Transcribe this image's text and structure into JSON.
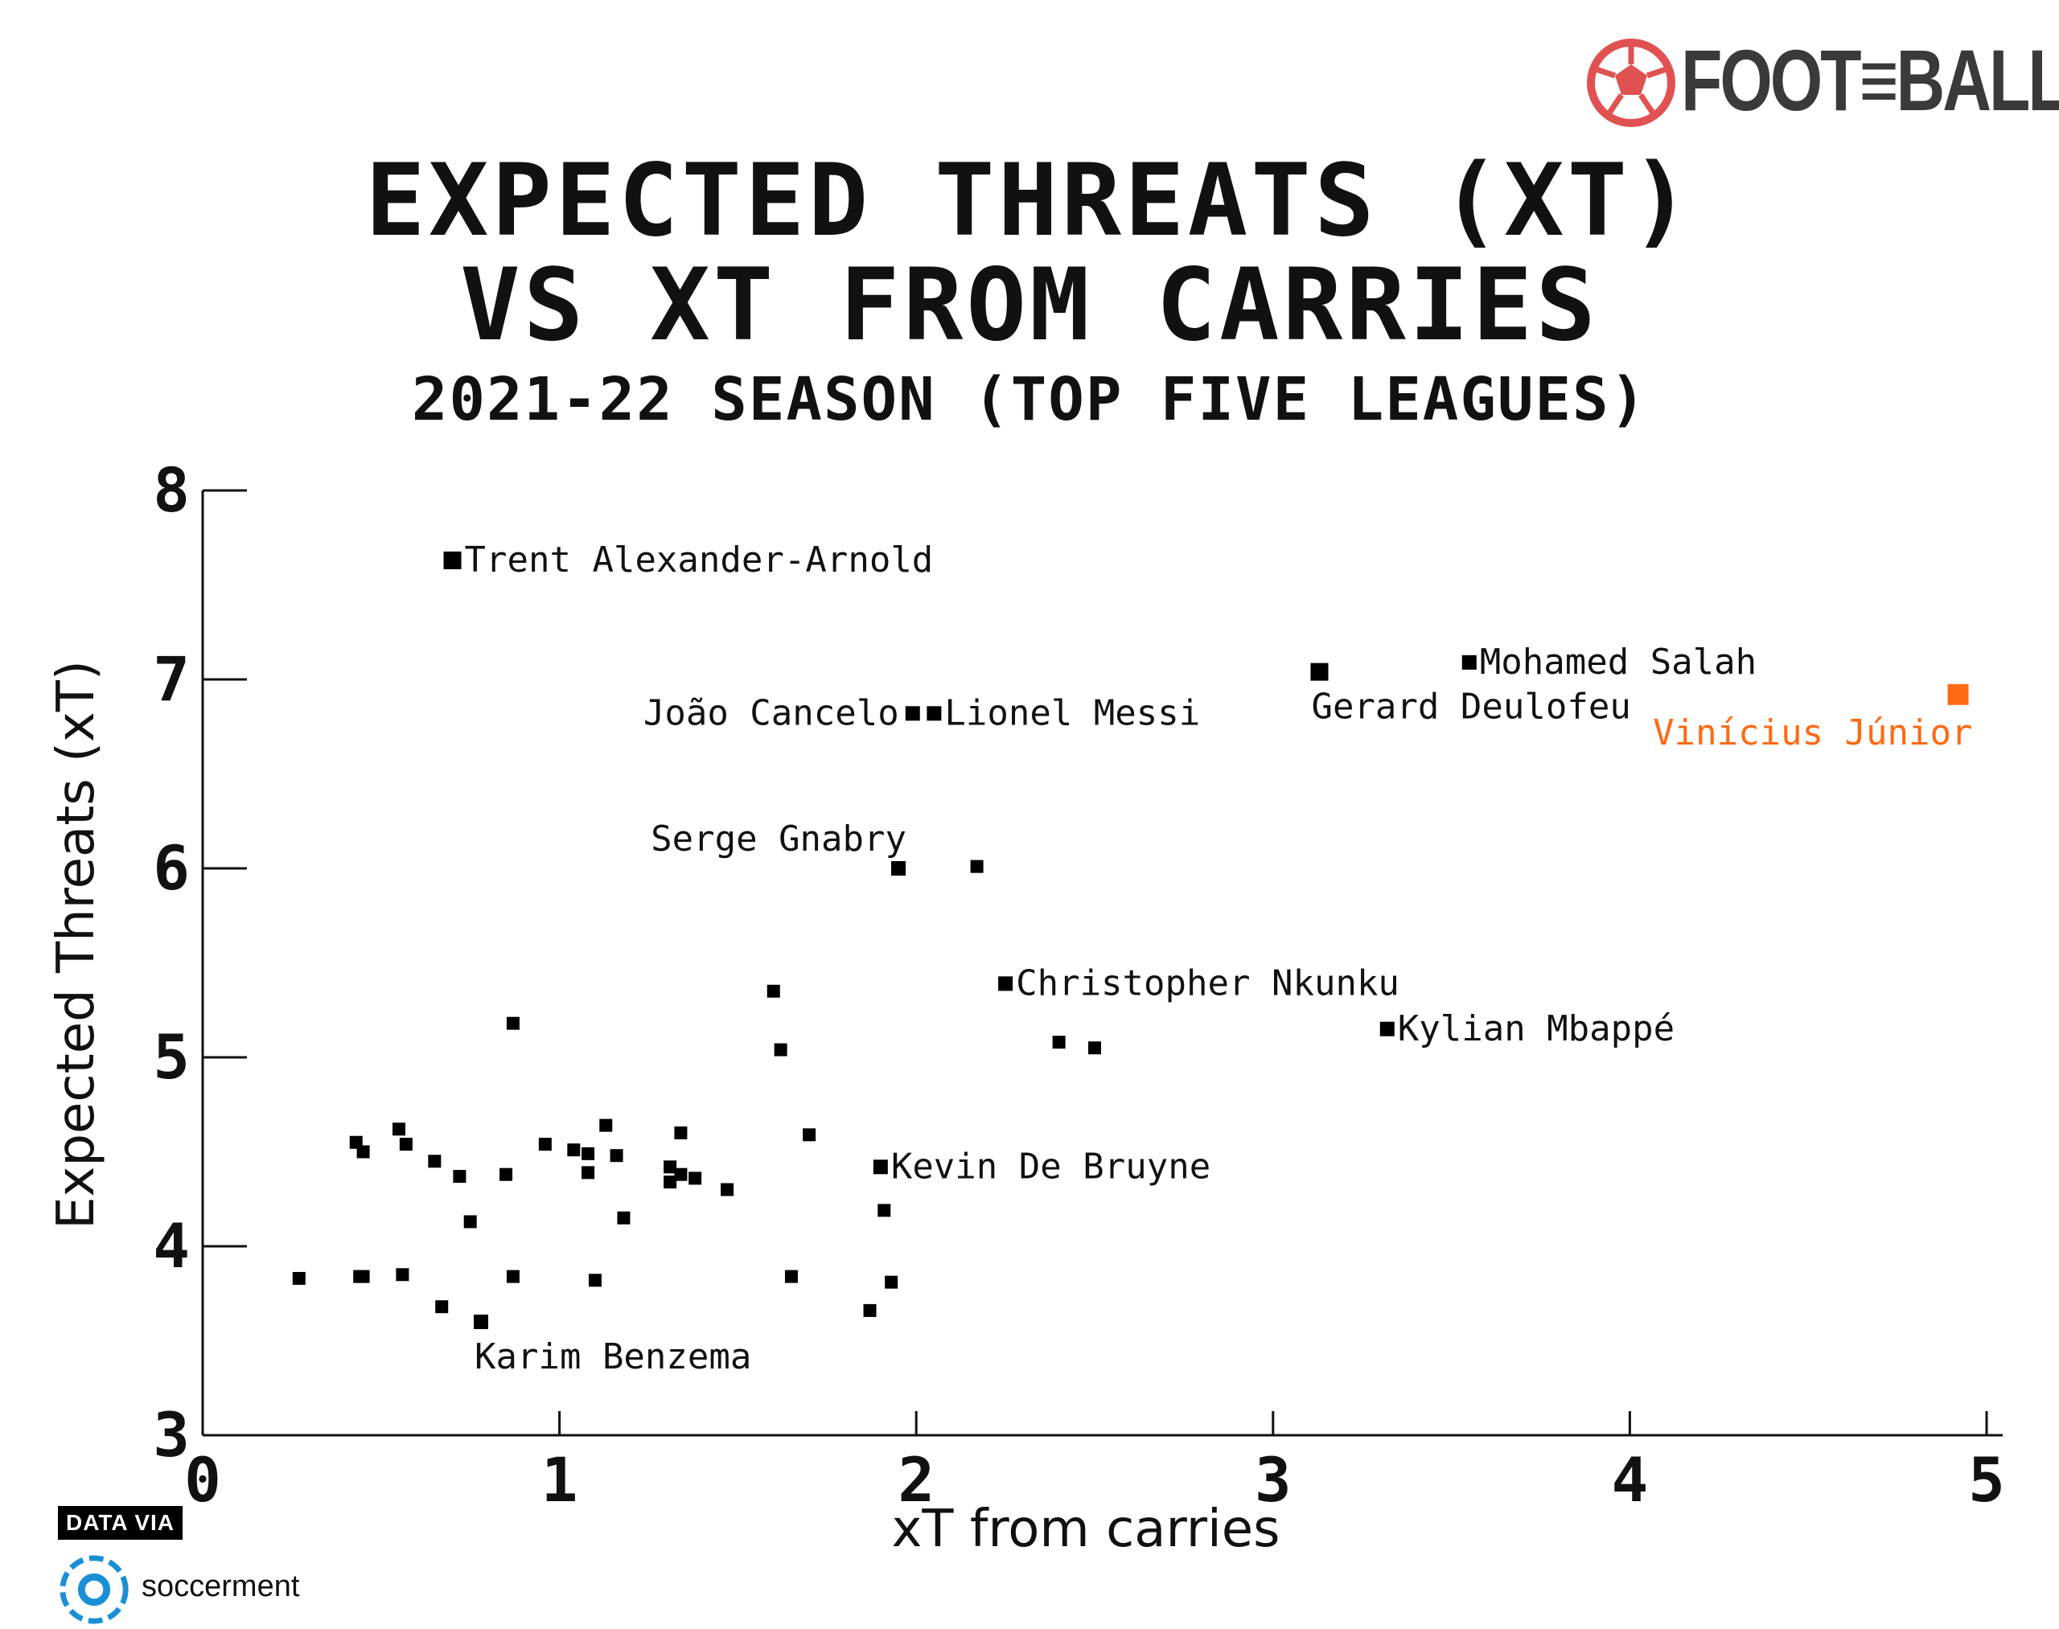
{
  "branding": {
    "word": "FOOT≡BALL",
    "icon": "football-icon",
    "color": "#e05252"
  },
  "source": {
    "label": "DATA VIA",
    "name": "soccerment",
    "icon": "soccerment-logo-icon",
    "color": "#1b8fd6"
  },
  "chart_data": {
    "type": "scatter",
    "title": "EXPECTED THREATS (XT)",
    "title_line2": "VS XT FROM CARRIES",
    "subtitle": "2021-22 SEASON (TOP FIVE LEAGUES)",
    "xlabel": "xT from carries",
    "ylabel": "Expected Threats (xT)",
    "xlim": [
      0,
      5
    ],
    "ylim": [
      3,
      8
    ],
    "x_ticks": [
      "0",
      "1",
      "2",
      "3",
      "4",
      "5"
    ],
    "y_ticks": [
      "3",
      "4",
      "5",
      "6",
      "7",
      "8"
    ],
    "grid": false,
    "highlight_color": "#ff6a13",
    "point_color": "#000000",
    "labeled_points": [
      {
        "name": "Trent Alexander-Arnold",
        "x": 0.7,
        "y": 7.63,
        "label_side": "right"
      },
      {
        "name": "João Cancelo",
        "x": 1.99,
        "y": 6.82,
        "label_side": "left"
      },
      {
        "name": "Lionel Messi",
        "x": 2.05,
        "y": 6.82,
        "label_side": "right"
      },
      {
        "name": "Gerard Deulofeu",
        "x": 3.13,
        "y": 7.04,
        "label_side": "below"
      },
      {
        "name": "Mohamed Salah",
        "x": 3.55,
        "y": 7.09,
        "label_side": "right"
      },
      {
        "name": "Vinícius Júnior",
        "x": 4.92,
        "y": 6.92,
        "label_side": "below-left",
        "highlight": true
      },
      {
        "name": "Serge Gnabry",
        "x": 1.95,
        "y": 6.0,
        "label_side": "above-left"
      },
      {
        "name": "Christopher Nkunku",
        "x": 2.25,
        "y": 5.39,
        "label_side": "right"
      },
      {
        "name": "Kylian Mbappé",
        "x": 3.32,
        "y": 5.15,
        "label_side": "right"
      },
      {
        "name": "Kevin De Bruyne",
        "x": 1.9,
        "y": 4.42,
        "label_side": "right"
      },
      {
        "name": "Karim Benzema",
        "x": 0.78,
        "y": 3.6,
        "label_side": "below"
      }
    ],
    "points": [
      [
        2.17,
        6.01
      ],
      [
        1.6,
        5.35
      ],
      [
        0.87,
        5.18
      ],
      [
        1.62,
        5.04
      ],
      [
        2.4,
        5.08
      ],
      [
        2.5,
        5.05
      ],
      [
        1.7,
        4.59
      ],
      [
        0.55,
        4.62
      ],
      [
        0.43,
        4.55
      ],
      [
        0.45,
        4.5
      ],
      [
        0.57,
        4.54
      ],
      [
        0.65,
        4.45
      ],
      [
        0.72,
        4.37
      ],
      [
        0.85,
        4.38
      ],
      [
        0.96,
        4.54
      ],
      [
        1.04,
        4.51
      ],
      [
        1.08,
        4.49
      ],
      [
        1.13,
        4.64
      ],
      [
        1.16,
        4.48
      ],
      [
        1.08,
        4.39
      ],
      [
        1.34,
        4.6
      ],
      [
        1.31,
        4.42
      ],
      [
        1.34,
        4.38
      ],
      [
        1.31,
        4.34
      ],
      [
        1.38,
        4.36
      ],
      [
        1.47,
        4.3
      ],
      [
        0.75,
        4.13
      ],
      [
        1.18,
        4.15
      ],
      [
        1.91,
        4.19
      ],
      [
        0.27,
        3.83
      ],
      [
        0.44,
        3.84
      ],
      [
        0.45,
        3.84
      ],
      [
        0.56,
        3.85
      ],
      [
        0.87,
        3.84
      ],
      [
        1.1,
        3.82
      ],
      [
        1.65,
        3.84
      ],
      [
        1.93,
        3.81
      ],
      [
        0.67,
        3.68
      ],
      [
        1.87,
        3.66
      ]
    ]
  }
}
